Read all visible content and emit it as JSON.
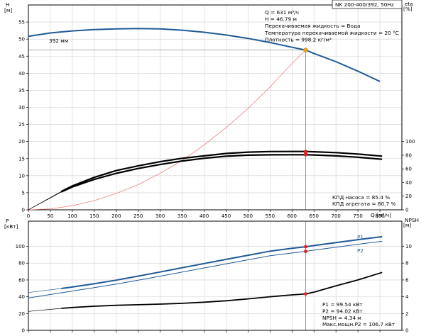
{
  "chart_data": [
    {
      "type": "line",
      "panel": "upper",
      "title_box": "NK 200-400/392, 50Hz",
      "xlabel": "Q [м³/ч]",
      "xlim": [
        0,
        850
      ],
      "x_ticks": [
        0,
        50,
        100,
        150,
        200,
        250,
        300,
        350,
        400,
        450,
        500,
        550,
        600,
        650,
        700,
        750,
        800
      ],
      "x_tick_labels": [
        "0",
        "50",
        "100",
        "150",
        "200",
        "250",
        "300",
        "350",
        "400",
        "450",
        "500",
        "550",
        "600",
        "650",
        "700",
        "750",
        "800"
      ],
      "left_axis": {
        "label_top": "H",
        "label_unit": "[м]",
        "ylim": [
          0,
          60
        ],
        "ticks": [
          0,
          5,
          10,
          15,
          20,
          25,
          30,
          35,
          40,
          45,
          50,
          55
        ],
        "tick_labels": [
          "0",
          "5",
          "10",
          "15",
          "20",
          "25",
          "30",
          "35",
          "40",
          "45",
          "50",
          "55"
        ]
      },
      "right_axis": {
        "label_top": "eta",
        "label_unit": "[%]",
        "ylim": [
          0,
          300
        ],
        "ticks": [
          0,
          20,
          40,
          60,
          80,
          100
        ],
        "tick_labels": [
          "0",
          "20",
          "40",
          "60",
          "80",
          "100"
        ]
      },
      "grid": true,
      "series": [
        {
          "name": "392 мм",
          "color": "#1f5a96",
          "width": 2,
          "axis": "H",
          "x": [
            0,
            50,
            100,
            150,
            200,
            250,
            300,
            350,
            400,
            450,
            500,
            550,
            600,
            631,
            650,
            700,
            750,
            800
          ],
          "y": [
            50.8,
            51.8,
            52.4,
            52.8,
            53.0,
            53.1,
            53.0,
            52.6,
            52.0,
            51.2,
            50.2,
            49.0,
            47.6,
            46.79,
            45.8,
            43.4,
            40.6,
            37.6
          ]
        },
        {
          "color": "#f08080",
          "width": 0.8,
          "axis": "H",
          "x": [
            0,
            50,
            100,
            150,
            200,
            250,
            300,
            350,
            400,
            450,
            500,
            550,
            600,
            631
          ],
          "y": [
            0,
            0.3,
            1.2,
            2.7,
            4.8,
            7.4,
            10.7,
            14.5,
            19.0,
            24.1,
            29.7,
            36.0,
            42.9,
            46.79
          ]
        },
        {
          "color": "#000000",
          "width": 2.2,
          "axis": "eta",
          "dashed_tail_from": 75,
          "x": [
            0,
            75,
            100,
            150,
            200,
            250,
            300,
            350,
            400,
            450,
            500,
            550,
            600,
            631,
            650,
            700,
            750,
            805
          ],
          "y": [
            0,
            27.0,
            35.0,
            47.5,
            57.5,
            64.5,
            70.5,
            75.5,
            79.0,
            82.5,
            84.5,
            85.3,
            85.4,
            85.4,
            85.0,
            83.8,
            81.7,
            78.6
          ]
        },
        {
          "color": "#000000",
          "width": 2.2,
          "axis": "eta",
          "dashed_tail_from": 75,
          "x": [
            0,
            75,
            100,
            150,
            200,
            250,
            300,
            350,
            400,
            450,
            500,
            550,
            600,
            631,
            650,
            700,
            750,
            805
          ],
          "y": [
            0,
            26.2,
            33.5,
            44.5,
            53.5,
            60.5,
            66.3,
            71.5,
            75.5,
            78.5,
            80.0,
            80.6,
            80.7,
            80.7,
            80.3,
            79.0,
            77.0,
            74.0
          ]
        }
      ],
      "operating_point": {
        "x": 631,
        "y": 46.79,
        "color": "#f0a020"
      },
      "markers": [
        {
          "x": 631,
          "y": 85.4,
          "axis": "eta"
        },
        {
          "x": 631,
          "y": 80.7,
          "axis": "eta"
        },
        {
          "x": 631,
          "y": 82.9,
          "axis": "eta"
        }
      ],
      "inline_labels": [
        "392 мм"
      ],
      "info_lines": [
        "Q = 631 м³/ч",
        "H = 46.79 м",
        "Перекачиваемая жидкость = Вода",
        "Температура перекачиваемой жидкости = 20 °C",
        "Плотность = 998.2 кг/м³"
      ],
      "efficiency_lines": [
        "КПД насоса = 85.4 %",
        "КПД агрегата = 80.7 %"
      ]
    },
    {
      "type": "line",
      "panel": "lower",
      "xlim": [
        0,
        850
      ],
      "x_ticks": [
        0,
        50,
        100,
        150,
        200,
        250,
        300,
        350,
        400,
        450,
        500,
        550,
        600,
        650,
        700,
        750,
        800
      ],
      "left_axis": {
        "label_top": "P",
        "label_unit": "[кВт]",
        "ylim": [
          0,
          130
        ],
        "ticks": [
          0,
          20,
          40,
          60,
          80,
          100
        ],
        "tick_labels": [
          "0",
          "20",
          "40",
          "60",
          "80",
          "100"
        ]
      },
      "right_axis": {
        "label_top": "NPSH",
        "label_unit": "[м]",
        "ylim": [
          0,
          13
        ],
        "ticks": [
          0,
          2,
          4,
          6,
          8,
          10
        ],
        "tick_labels": [
          "0",
          "2",
          "4",
          "6",
          "8",
          "10"
        ]
      },
      "grid": true,
      "series": [
        {
          "name": "P1",
          "color": "#1f5a96",
          "width": 2,
          "axis": "P",
          "dashed_tail_from": 75,
          "x": [
            0,
            75,
            100,
            150,
            200,
            250,
            300,
            350,
            400,
            450,
            500,
            550,
            600,
            631,
            650,
            700,
            750,
            805
          ],
          "y": [
            45.0,
            49.8,
            51.6,
            55.5,
            59.8,
            64.6,
            69.5,
            74.5,
            79.5,
            84.5,
            89.4,
            94.3,
            97.7,
            99.54,
            101.0,
            104.5,
            108.0,
            111.5
          ]
        },
        {
          "name": "P2",
          "color": "#1f5a96",
          "width": 1,
          "axis": "P",
          "x": [
            0,
            75,
            100,
            150,
            200,
            250,
            300,
            350,
            400,
            450,
            500,
            550,
            600,
            631,
            650,
            700,
            750,
            805
          ],
          "y": [
            38.5,
            44.7,
            46.8,
            50.8,
            55.0,
            59.7,
            64.5,
            69.4,
            74.3,
            79.2,
            84.0,
            88.8,
            92.1,
            94.02,
            95.5,
            99.0,
            102.5,
            106.0
          ]
        },
        {
          "color": "#000000",
          "width": 1.8,
          "axis": "NPSH",
          "dashed_tail_from": 75,
          "x": [
            0,
            75,
            100,
            150,
            200,
            250,
            300,
            350,
            400,
            450,
            500,
            550,
            600,
            631,
            650,
            700,
            750,
            805
          ],
          "y": [
            2.25,
            2.62,
            2.72,
            2.87,
            2.98,
            3.05,
            3.12,
            3.22,
            3.35,
            3.52,
            3.75,
            4.0,
            4.22,
            4.34,
            4.55,
            5.3,
            6.0,
            6.9
          ]
        }
      ],
      "markers": [
        {
          "x": 631,
          "y": 99.54,
          "axis": "P"
        },
        {
          "x": 631,
          "y": 94.02,
          "axis": "P"
        },
        {
          "x": 631,
          "y": 4.34,
          "axis": "NPSH"
        }
      ],
      "inline_labels": [
        "P1",
        "P2"
      ],
      "info_lines": [
        "P1 = 99.54 кВт",
        "P2 = 94.02 кВт",
        "NPSH = 4.34 м",
        "Макс.мощн.P2 = 106.7 кВт"
      ]
    }
  ]
}
